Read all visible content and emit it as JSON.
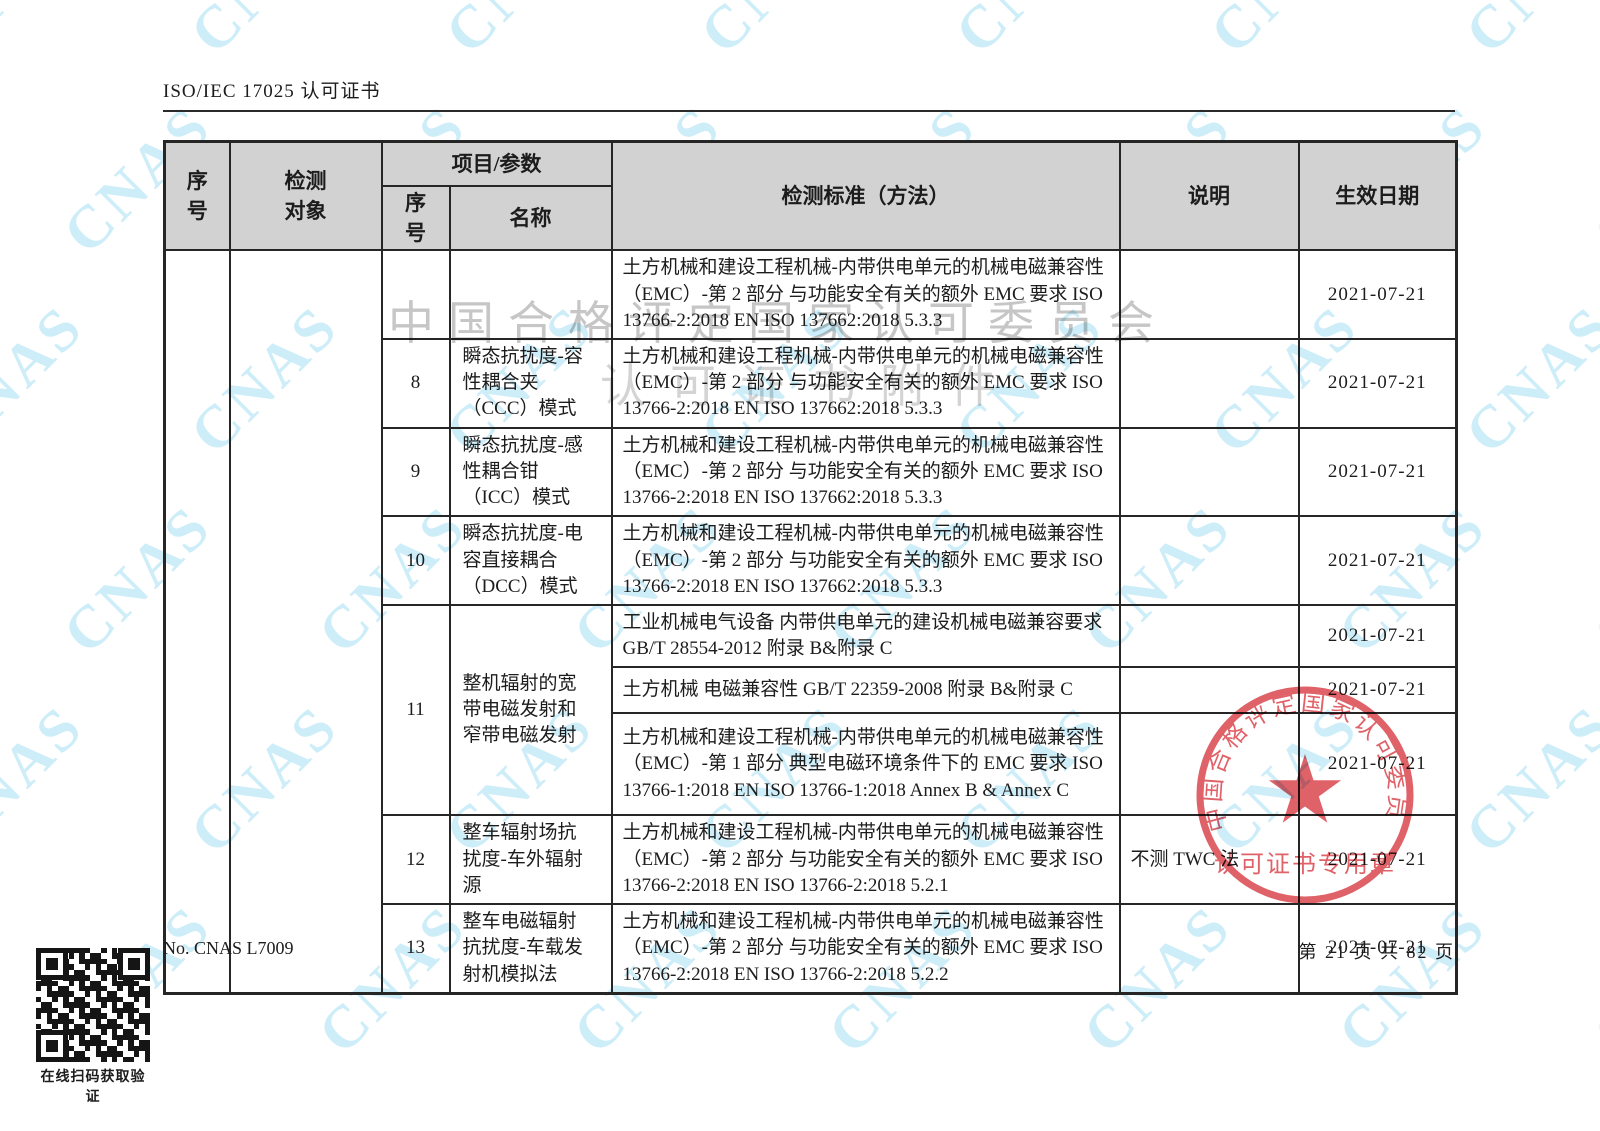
{
  "header": {
    "title": "ISO/IEC 17025 认可证书"
  },
  "watermark": {
    "text": "CNAS"
  },
  "overlay": {
    "line1": "中国合格评定国家认可委员会",
    "line2": "认可证书附件"
  },
  "stamp": {
    "ring_text": "中国合格评定国家认可委员会",
    "bottom_text": "认可证书专用章",
    "color": "#d93a43"
  },
  "table": {
    "header": {
      "no": "序\n号",
      "object": "检测\n对象",
      "item_param": "项目/参数",
      "sub_no": "序\n号",
      "name": "名称",
      "standard": "检测标准（方法）",
      "note": "说明",
      "date": "生效日期"
    },
    "rows": [
      {
        "sub_no": "",
        "name": "",
        "standard": "土方机械和建设工程机械-内带供电单元的机械电磁兼容性（EMC）-第 2 部分  与功能安全有关的额外 EMC 要求  ISO 13766-2:2018 EN ISO 137662:2018  5.3.3",
        "note": "",
        "date": "2021-07-21"
      },
      {
        "sub_no": "8",
        "name": "瞬态抗扰度-容\n性耦合夹\n（CCC）模式",
        "standard": "土方机械和建设工程机械-内带供电单元的机械电磁兼容性（EMC）-第 2 部分  与功能安全有关的额外 EMC 要求  ISO 13766-2:2018 EN ISO 137662:2018  5.3.3",
        "note": "",
        "date": "2021-07-21"
      },
      {
        "sub_no": "9",
        "name": "瞬态抗扰度-感\n性耦合钳\n（ICC）模式",
        "standard": "土方机械和建设工程机械-内带供电单元的机械电磁兼容性（EMC）-第 2 部分  与功能安全有关的额外 EMC 要求  ISO 13766-2:2018 EN ISO 137662:2018  5.3.3",
        "note": "",
        "date": "2021-07-21"
      },
      {
        "sub_no": "10",
        "name": "瞬态抗扰度-电\n容直接耦合\n（DCC）模式",
        "standard": "土方机械和建设工程机械-内带供电单元的机械电磁兼容性（EMC）-第 2 部分  与功能安全有关的额外 EMC 要求  ISO 13766-2:2018 EN ISO 137662:2018  5.3.3",
        "note": "",
        "date": "2021-07-21"
      },
      {
        "sub_no": "11",
        "name": "整机辐射的宽\n带电磁发射和\n窄带电磁发射",
        "standard": "工业机械电气设备  内带供电单元的建设机械电磁兼容要求  GB/T 28554-2012  附录 B&附录 C",
        "note": "",
        "date": "2021-07-21"
      },
      {
        "standard": "土方机械  电磁兼容性  GB/T 22359-2008  附录 B&附录 C",
        "note": "",
        "date": "2021-07-21"
      },
      {
        "standard": "土方机械和建设工程机械-内带供电单元的机械电磁兼容性（EMC）-第 1 部分  典型电磁环境条件下的 EMC 要求  ISO 13766-1:2018 EN ISO 13766-1:2018  Annex B & Annex C",
        "note": "",
        "date": "2021-07-21"
      },
      {
        "sub_no": "12",
        "name": "整车辐射场抗\n扰度-车外辐射\n源",
        "standard": "土方机械和建设工程机械-内带供电单元的机械电磁兼容性（EMC）-第 2 部分  与功能安全有关的额外 EMC 要求  ISO 13766-2:2018 EN ISO 13766-2:2018  5.2.1",
        "note": "不测 TWC 法",
        "date": "2021-07-21"
      },
      {
        "sub_no": "13",
        "name": "整车电磁辐射\n抗扰度-车载发\n射机模拟法",
        "standard": "土方机械和建设工程机械-内带供电单元的机械电磁兼容性（EMC）-第 2 部分  与功能安全有关的额外 EMC 要求  ISO 13766-2:2018 EN ISO 13766-2:2018  5.2.2",
        "note": "",
        "date": "2021-07-21"
      }
    ]
  },
  "footer": {
    "certificate_no": "No. CNAS L7009",
    "page_info": "第 21 页 共 82 页",
    "qr_caption": "在线扫码获取验证"
  }
}
